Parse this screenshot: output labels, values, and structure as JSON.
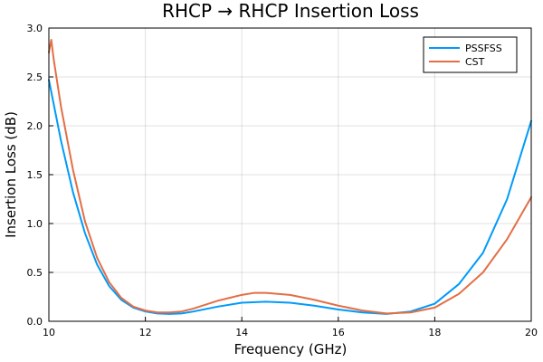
{
  "chart_data": {
    "type": "line",
    "title": "RHCP → RHCP Insertion Loss",
    "xlabel": "Frequency (GHz)",
    "ylabel": "Insertion Loss (dB)",
    "xlim": [
      10,
      20
    ],
    "ylim": [
      0,
      3
    ],
    "xticks": [
      10,
      12,
      14,
      16,
      18,
      20
    ],
    "xtick_labels": [
      "10",
      "12",
      "14",
      "16",
      "18",
      "20"
    ],
    "yticks": [
      0,
      0.5,
      1,
      1.5,
      2,
      2.5,
      3
    ],
    "ytick_labels": [
      "0.0",
      "0.5",
      "1.0",
      "1.5",
      "2.0",
      "2.5",
      "3.0"
    ],
    "grid": true,
    "legend_position": "top-right",
    "series": [
      {
        "name": "PSSFSS",
        "color": "#009AFA",
        "x": [
          10.0,
          10.25,
          10.5,
          10.75,
          11.0,
          11.25,
          11.5,
          11.75,
          12.0,
          12.25,
          12.5,
          12.75,
          13.0,
          13.5,
          14.0,
          14.5,
          15.0,
          15.5,
          16.0,
          16.5,
          17.0,
          17.5,
          18.0,
          18.5,
          19.0,
          19.5,
          20.0
        ],
        "y": [
          2.47,
          1.85,
          1.32,
          0.9,
          0.58,
          0.36,
          0.22,
          0.14,
          0.1,
          0.08,
          0.075,
          0.08,
          0.1,
          0.15,
          0.19,
          0.2,
          0.19,
          0.16,
          0.12,
          0.09,
          0.075,
          0.1,
          0.18,
          0.38,
          0.7,
          1.25,
          2.05
        ]
      },
      {
        "name": "CST",
        "color": "#E26F46",
        "x": [
          10.0,
          10.05,
          10.1,
          10.25,
          10.5,
          10.75,
          11.0,
          11.25,
          11.5,
          11.75,
          12.0,
          12.25,
          12.5,
          12.75,
          13.0,
          13.5,
          14.0,
          14.25,
          14.5,
          15.0,
          15.5,
          16.0,
          16.5,
          17.0,
          17.5,
          18.0,
          18.5,
          19.0,
          19.5,
          20.0
        ],
        "y": [
          2.75,
          2.88,
          2.68,
          2.2,
          1.55,
          1.02,
          0.65,
          0.4,
          0.24,
          0.15,
          0.11,
          0.09,
          0.09,
          0.1,
          0.13,
          0.21,
          0.27,
          0.29,
          0.29,
          0.27,
          0.22,
          0.16,
          0.11,
          0.08,
          0.09,
          0.14,
          0.28,
          0.5,
          0.84,
          1.27
        ]
      }
    ]
  }
}
